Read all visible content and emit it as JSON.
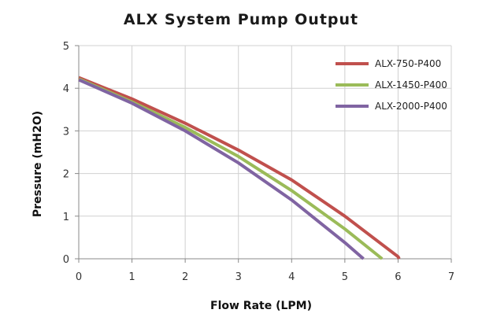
{
  "chart_data": {
    "type": "line",
    "title": "ALX System Pump Output",
    "xlabel": "Flow Rate (LPM)",
    "ylabel": "Pressure (mH2O)",
    "xlim": [
      0,
      7
    ],
    "ylim": [
      0,
      5
    ],
    "xticks": [
      "0",
      "1",
      "2",
      "3",
      "4",
      "5",
      "6",
      "7"
    ],
    "yticks": [
      "0",
      "1",
      "2",
      "3",
      "4",
      "5"
    ],
    "grid": true,
    "legend_position": "top-right",
    "series": [
      {
        "name": "ALX-750-P400",
        "color": "#c0504d",
        "x": [
          0,
          1,
          2,
          3,
          4,
          5,
          6,
          6.02
        ],
        "y": [
          4.25,
          3.75,
          3.18,
          2.55,
          1.85,
          1.0,
          0.05,
          0
        ]
      },
      {
        "name": "ALX-1450-P400",
        "color": "#9bbb59",
        "x": [
          0,
          1,
          2,
          3,
          4,
          5,
          5.7
        ],
        "y": [
          4.22,
          3.68,
          3.08,
          2.4,
          1.6,
          0.7,
          0
        ]
      },
      {
        "name": "ALX-2000-P400",
        "color": "#8064a2",
        "x": [
          0,
          1,
          2,
          3,
          4,
          5,
          5.35
        ],
        "y": [
          4.2,
          3.65,
          3.0,
          2.25,
          1.38,
          0.38,
          0
        ]
      }
    ]
  }
}
